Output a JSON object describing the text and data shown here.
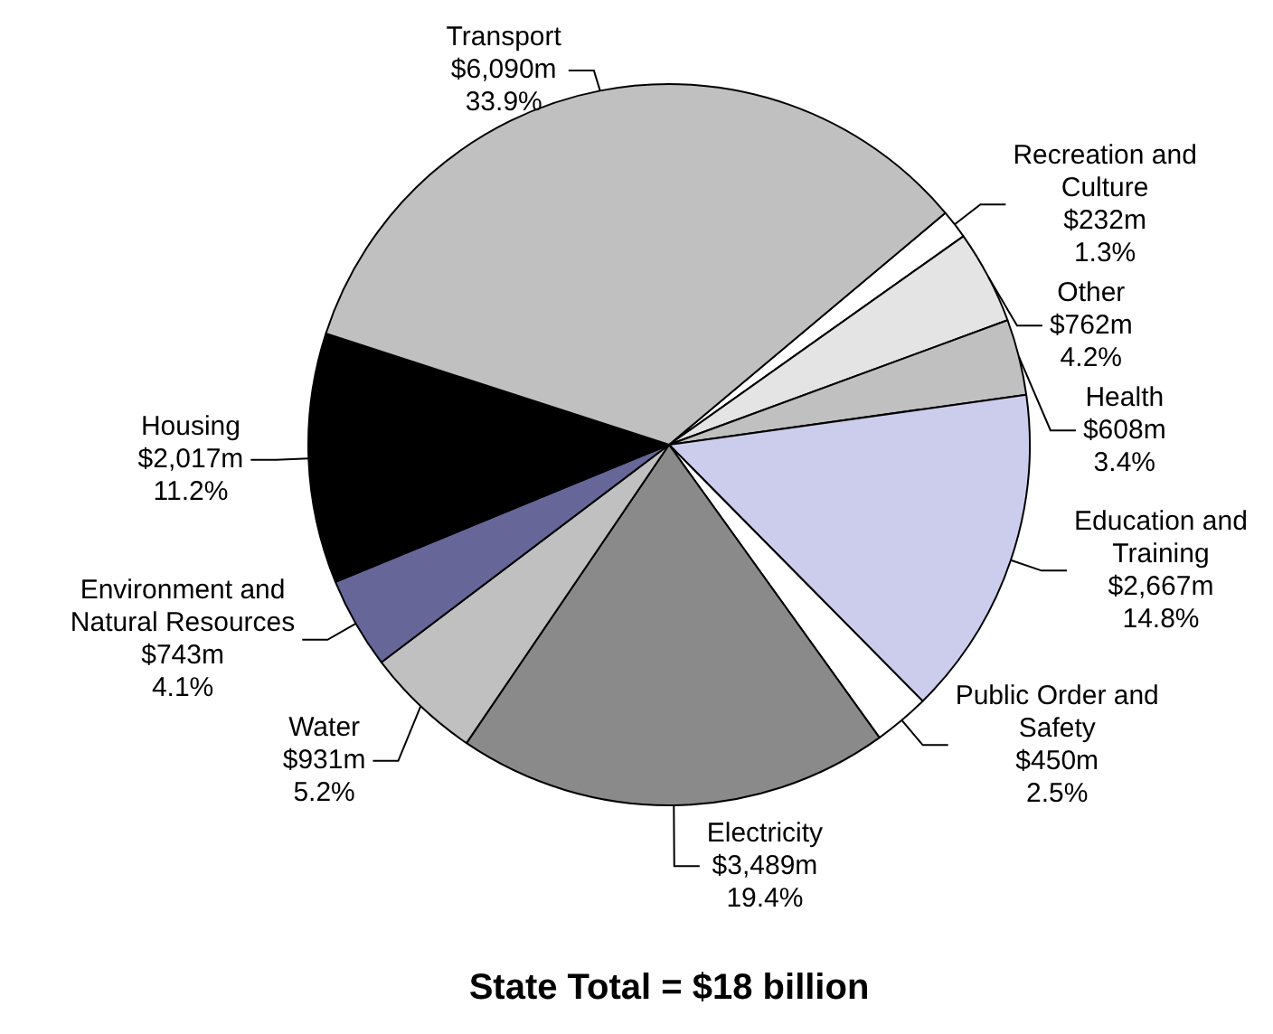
{
  "chart_data": {
    "type": "pie",
    "title": "State Total = $18 billion",
    "categories": [
      "Recreation and Culture",
      "Other",
      "Health",
      "Education and Training",
      "Public Order and Safety",
      "Electricity",
      "Water",
      "Environment and Natural Resources",
      "Housing",
      "Transport"
    ],
    "values": [
      1.3,
      4.2,
      3.4,
      14.8,
      2.5,
      19.4,
      5.2,
      4.1,
      11.2,
      33.9
    ],
    "value_labels": [
      "$232m\n1.3%",
      "$762m\n4.2%",
      "$608m\n3.4%",
      "$2,667m\n14.8%",
      "$450m\n2.5%",
      "$3,489m\n19.4%",
      "$931m\n5.2%",
      "$743m\n4.1%",
      "$2,017m\n11.2%",
      "$6,090m\n33.9%"
    ],
    "colors": [
      "#ffffff",
      "#e4e4e4",
      "#c0c0c0",
      "#ccccec",
      "#ffffff",
      "#8a8a8a",
      "#c0c0c0",
      "#666699",
      "#000000",
      "#c0c0c0"
    ],
    "legend": false
  }
}
